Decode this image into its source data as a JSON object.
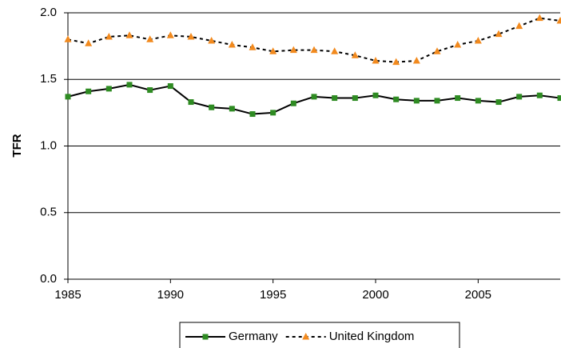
{
  "chart_data": {
    "type": "line",
    "ylabel": "TFR",
    "x": [
      1985,
      1986,
      1987,
      1988,
      1989,
      1990,
      1991,
      1992,
      1993,
      1994,
      1995,
      1996,
      1997,
      1998,
      1999,
      2000,
      2001,
      2002,
      2003,
      2004,
      2005,
      2006,
      2007,
      2008,
      2009
    ],
    "series": [
      {
        "name": "Germany",
        "color": "#2e8b22",
        "line_color": "#000000",
        "marker": "square",
        "linestyle": "solid",
        "values": [
          1.37,
          1.41,
          1.43,
          1.46,
          1.42,
          1.45,
          1.33,
          1.29,
          1.28,
          1.24,
          1.25,
          1.32,
          1.37,
          1.36,
          1.36,
          1.38,
          1.35,
          1.34,
          1.34,
          1.36,
          1.34,
          1.33,
          1.37,
          1.38,
          1.36
        ]
      },
      {
        "name": "United Kingdom",
        "color": "#f28a1e",
        "line_color": "#000000",
        "marker": "triangle",
        "linestyle": "dotted",
        "values": [
          1.8,
          1.77,
          1.82,
          1.83,
          1.8,
          1.83,
          1.82,
          1.79,
          1.76,
          1.74,
          1.71,
          1.72,
          1.72,
          1.71,
          1.68,
          1.64,
          1.63,
          1.64,
          1.71,
          1.76,
          1.79,
          1.84,
          1.9,
          1.96,
          1.94
        ]
      }
    ],
    "xlim": [
      1985,
      2009
    ],
    "xticks": [
      1985,
      1990,
      1995,
      2000,
      2005
    ],
    "ylim": [
      0,
      2
    ],
    "yticks": [
      {
        "value": 0,
        "label": "0.0"
      },
      0.5,
      {
        "value": 1,
        "label": "1.0"
      },
      1.5,
      {
        "value": 2,
        "label": "2.0"
      }
    ],
    "grid": true,
    "legend": "bottom"
  }
}
